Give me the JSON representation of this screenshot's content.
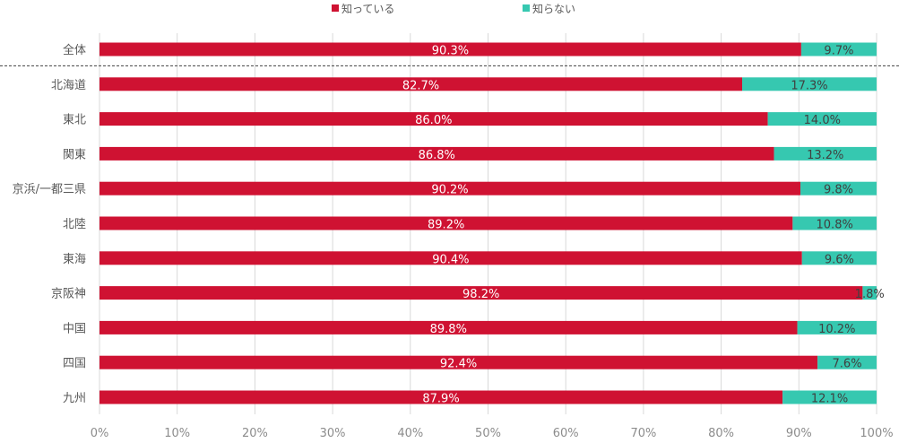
{
  "chart_data": {
    "type": "bar",
    "orientation": "horizontal",
    "stacked": "percent",
    "title": "",
    "xlabel": "",
    "ylabel": "",
    "xlim": [
      0,
      100
    ],
    "grid": true,
    "legend_position": "top",
    "categories": [
      "全体",
      "北海道",
      "東北",
      "関東",
      "京浜/一都三県",
      "北陸",
      "東海",
      "京阪神",
      "中国",
      "四国",
      "九州"
    ],
    "series": [
      {
        "name": "知っている",
        "color": "#cf1232",
        "values": [
          90.3,
          82.7,
          86.0,
          86.8,
          90.2,
          89.2,
          90.4,
          98.2,
          89.8,
          92.4,
          87.9
        ],
        "labels": [
          "90.3%",
          "82.7%",
          "86.0%",
          "86.8%",
          "90.2%",
          "89.2%",
          "90.4%",
          "98.2%",
          "89.8%",
          "92.4%",
          "87.9%"
        ]
      },
      {
        "name": "知らない",
        "color": "#36c8b0",
        "values": [
          9.7,
          17.3,
          14.0,
          13.2,
          9.8,
          10.8,
          9.6,
          1.8,
          10.2,
          7.6,
          12.1
        ],
        "labels": [
          "9.7%",
          "17.3%",
          "14.0%",
          "13.2%",
          "9.8%",
          "10.8%",
          "9.6%",
          "1.8%",
          "10.2%",
          "7.6%",
          "12.1%"
        ]
      }
    ],
    "x_ticks": [
      0,
      10,
      20,
      30,
      40,
      50,
      60,
      70,
      80,
      90,
      100
    ],
    "x_tick_labels": [
      "0%",
      "10%",
      "20%",
      "30%",
      "40%",
      "50%",
      "60%",
      "70%",
      "80%",
      "90%",
      "100%"
    ],
    "separator_after_category": "全体"
  }
}
